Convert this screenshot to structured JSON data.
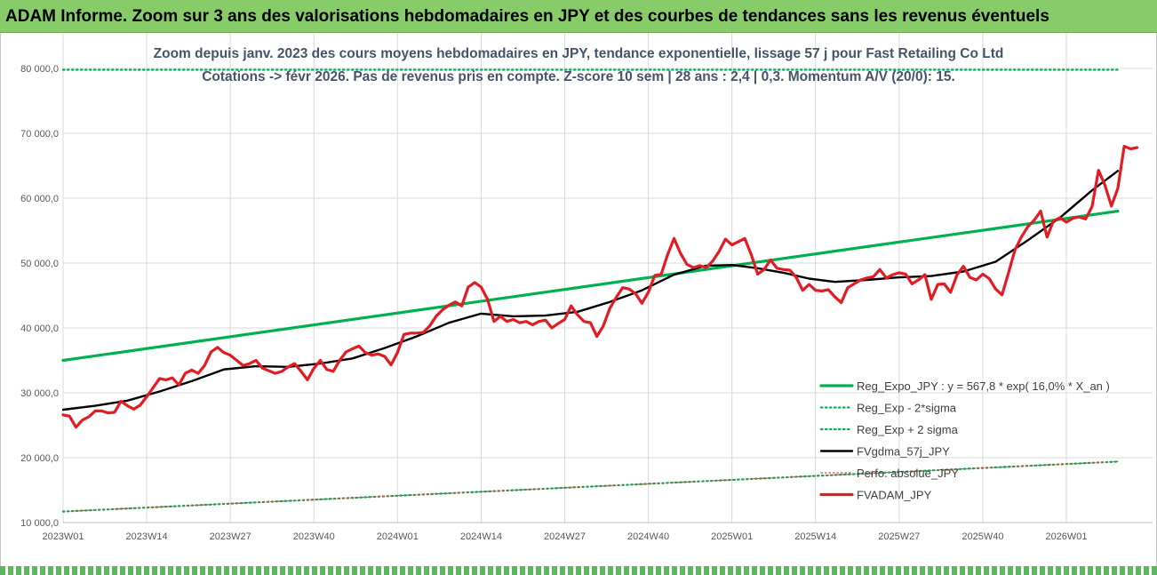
{
  "header": {
    "title": "ADAM Informe. Zoom sur 3 ans des valorisations hebdomadaires en JPY et des courbes de tendances sans les revenus éventuels"
  },
  "chart_data": {
    "type": "line",
    "title": "Zoom depuis janv. 2023 des cours moyens hebdomadaires en JPY, tendance exponentielle, lissage 57 j pour Fast Retailing Co Ltd",
    "subtitle": "Cotations -> févr 2026. Pas de revenus pris en compte. Z-score 10 sem | 28 ans : 2,4 | 0,3. Momentum A/V (20/0): 15.",
    "ylim": [
      10000,
      80000
    ],
    "y_ticks": [
      10000,
      20000,
      30000,
      40000,
      50000,
      60000,
      70000,
      80000
    ],
    "y_tick_labels": [
      "10 000,0",
      "20 000,0",
      "30 000,0",
      "40 000,0",
      "50 000,0",
      "60 000,0",
      "70 000,0",
      "80 000,0"
    ],
    "x_tick_labels": [
      "2023W01",
      "2023W14",
      "2023W27",
      "2023W40",
      "2024W01",
      "2024W14",
      "2024W27",
      "2024W40",
      "2025W01",
      "2025W14",
      "2025W27",
      "2025W40",
      "2026W01"
    ],
    "x_tick_positions": [
      0,
      13,
      26,
      39,
      52,
      65,
      78,
      91,
      104,
      117,
      130,
      143,
      156
    ],
    "x_max_week": 164,
    "grid": true,
    "legend_position": "bottom-right",
    "series": [
      {
        "name": "Reg_Expo_JPY : y = 567,8 * exp( 16,0% *  X_an )",
        "color": "#00b050",
        "style": "solid-thick",
        "points": [
          [
            0,
            35000
          ],
          [
            164,
            58000
          ]
        ]
      },
      {
        "name": "Reg_Exp - 2*sigma",
        "color": "#00b050",
        "style": "dotted",
        "points": [
          [
            0,
            11700
          ],
          [
            164,
            19400
          ]
        ]
      },
      {
        "name": "Reg_Exp + 2 sigma",
        "color": "#00b050",
        "style": "dotted",
        "points": [
          [
            0,
            79800
          ],
          [
            164,
            79800
          ]
        ]
      },
      {
        "name": "FVgdma_57j_JPY",
        "color": "#000000",
        "style": "solid",
        "points": [
          [
            0,
            27400
          ],
          [
            5,
            28000
          ],
          [
            10,
            28800
          ],
          [
            15,
            30200
          ],
          [
            20,
            31800
          ],
          [
            25,
            33600
          ],
          [
            30,
            34100
          ],
          [
            35,
            34000
          ],
          [
            40,
            34500
          ],
          [
            45,
            35300
          ],
          [
            50,
            36900
          ],
          [
            55,
            38700
          ],
          [
            60,
            40800
          ],
          [
            65,
            42200
          ],
          [
            70,
            41800
          ],
          [
            75,
            41900
          ],
          [
            80,
            42500
          ],
          [
            85,
            44000
          ],
          [
            90,
            45800
          ],
          [
            95,
            48200
          ],
          [
            100,
            49600
          ],
          [
            104,
            49700
          ],
          [
            108,
            49200
          ],
          [
            112,
            48500
          ],
          [
            116,
            47600
          ],
          [
            120,
            47100
          ],
          [
            125,
            47400
          ],
          [
            130,
            47800
          ],
          [
            135,
            48000
          ],
          [
            140,
            48700
          ],
          [
            145,
            50200
          ],
          [
            150,
            53500
          ],
          [
            155,
            57000
          ],
          [
            160,
            61200
          ],
          [
            164,
            64200
          ]
        ]
      },
      {
        "name": "Perfo. absolue_JPY",
        "color": "#c0504d",
        "style": "dotted-thin",
        "points": [
          [
            0,
            11700
          ],
          [
            164,
            19400
          ]
        ]
      },
      {
        "name": "FVADAM_JPY",
        "color": "#e31b23",
        "style": "solid-thick",
        "points": [
          [
            0,
            26600
          ],
          [
            1,
            26400
          ],
          [
            2,
            24700
          ],
          [
            3,
            25800
          ],
          [
            4,
            26300
          ],
          [
            5,
            27200
          ],
          [
            6,
            27200
          ],
          [
            7,
            26900
          ],
          [
            8,
            27000
          ],
          [
            9,
            28700
          ],
          [
            10,
            28000
          ],
          [
            11,
            27500
          ],
          [
            12,
            28100
          ],
          [
            13,
            29400
          ],
          [
            14,
            30800
          ],
          [
            15,
            32200
          ],
          [
            16,
            32000
          ],
          [
            17,
            32300
          ],
          [
            18,
            31200
          ],
          [
            19,
            33000
          ],
          [
            20,
            33500
          ],
          [
            21,
            33000
          ],
          [
            22,
            34200
          ],
          [
            23,
            36300
          ],
          [
            24,
            37000
          ],
          [
            25,
            36200
          ],
          [
            26,
            35800
          ],
          [
            27,
            35000
          ],
          [
            28,
            34200
          ],
          [
            29,
            34500
          ],
          [
            30,
            35000
          ],
          [
            31,
            33800
          ],
          [
            32,
            33400
          ],
          [
            33,
            33000
          ],
          [
            34,
            33300
          ],
          [
            35,
            34000
          ],
          [
            36,
            34500
          ],
          [
            37,
            33300
          ],
          [
            38,
            32000
          ],
          [
            39,
            33800
          ],
          [
            40,
            35000
          ],
          [
            41,
            33600
          ],
          [
            42,
            33300
          ],
          [
            43,
            35000
          ],
          [
            44,
            36300
          ],
          [
            45,
            36800
          ],
          [
            46,
            37200
          ],
          [
            47,
            36200
          ],
          [
            48,
            35800
          ],
          [
            49,
            36000
          ],
          [
            50,
            35600
          ],
          [
            51,
            34300
          ],
          [
            52,
            36200
          ],
          [
            53,
            39000
          ],
          [
            54,
            39200
          ],
          [
            55,
            39200
          ],
          [
            56,
            39300
          ],
          [
            57,
            40300
          ],
          [
            58,
            41800
          ],
          [
            59,
            42800
          ],
          [
            60,
            43500
          ],
          [
            61,
            44000
          ],
          [
            62,
            43400
          ],
          [
            63,
            46300
          ],
          [
            64,
            47000
          ],
          [
            65,
            46300
          ],
          [
            66,
            44400
          ],
          [
            67,
            41000
          ],
          [
            68,
            41800
          ],
          [
            69,
            41000
          ],
          [
            70,
            41300
          ],
          [
            71,
            40800
          ],
          [
            72,
            41000
          ],
          [
            73,
            40500
          ],
          [
            74,
            41000
          ],
          [
            75,
            41200
          ],
          [
            76,
            40000
          ],
          [
            77,
            40700
          ],
          [
            78,
            41300
          ],
          [
            79,
            43400
          ],
          [
            80,
            42000
          ],
          [
            81,
            41000
          ],
          [
            82,
            40800
          ],
          [
            83,
            38700
          ],
          [
            84,
            40300
          ],
          [
            85,
            43000
          ],
          [
            86,
            44700
          ],
          [
            87,
            46200
          ],
          [
            88,
            46000
          ],
          [
            89,
            45300
          ],
          [
            90,
            43800
          ],
          [
            91,
            45500
          ],
          [
            92,
            48100
          ],
          [
            93,
            48300
          ],
          [
            94,
            51300
          ],
          [
            95,
            53800
          ],
          [
            96,
            51500
          ],
          [
            97,
            49800
          ],
          [
            98,
            49300
          ],
          [
            99,
            49600
          ],
          [
            100,
            49300
          ],
          [
            101,
            50300
          ],
          [
            102,
            51800
          ],
          [
            103,
            53700
          ],
          [
            104,
            52800
          ],
          [
            105,
            53300
          ],
          [
            106,
            53800
          ],
          [
            107,
            51300
          ],
          [
            108,
            48300
          ],
          [
            109,
            49000
          ],
          [
            110,
            50500
          ],
          [
            111,
            49200
          ],
          [
            112,
            49000
          ],
          [
            113,
            48900
          ],
          [
            114,
            47800
          ],
          [
            115,
            45800
          ],
          [
            116,
            46700
          ],
          [
            117,
            45800
          ],
          [
            118,
            45700
          ],
          [
            119,
            45900
          ],
          [
            120,
            44800
          ],
          [
            121,
            43900
          ],
          [
            122,
            46200
          ],
          [
            123,
            46800
          ],
          [
            124,
            47400
          ],
          [
            125,
            47700
          ],
          [
            126,
            47900
          ],
          [
            127,
            49000
          ],
          [
            128,
            47700
          ],
          [
            129,
            48200
          ],
          [
            130,
            48500
          ],
          [
            131,
            48300
          ],
          [
            132,
            46800
          ],
          [
            133,
            47400
          ],
          [
            134,
            48200
          ],
          [
            135,
            44400
          ],
          [
            136,
            46700
          ],
          [
            137,
            46800
          ],
          [
            138,
            45500
          ],
          [
            139,
            48200
          ],
          [
            140,
            49500
          ],
          [
            141,
            47800
          ],
          [
            142,
            47400
          ],
          [
            143,
            48300
          ],
          [
            144,
            47600
          ],
          [
            145,
            46000
          ],
          [
            146,
            45100
          ],
          [
            147,
            48500
          ],
          [
            148,
            52000
          ],
          [
            149,
            54000
          ],
          [
            150,
            55600
          ],
          [
            151,
            56600
          ],
          [
            152,
            58000
          ],
          [
            153,
            54000
          ],
          [
            154,
            56500
          ],
          [
            155,
            57000
          ],
          [
            156,
            56300
          ],
          [
            157,
            56900
          ],
          [
            158,
            57100
          ],
          [
            159,
            56800
          ],
          [
            160,
            58700
          ],
          [
            161,
            64300
          ],
          [
            162,
            62000
          ],
          [
            163,
            58800
          ],
          [
            164,
            61500
          ],
          [
            165,
            68000
          ],
          [
            166,
            67600
          ],
          [
            167,
            67800
          ]
        ]
      }
    ]
  }
}
